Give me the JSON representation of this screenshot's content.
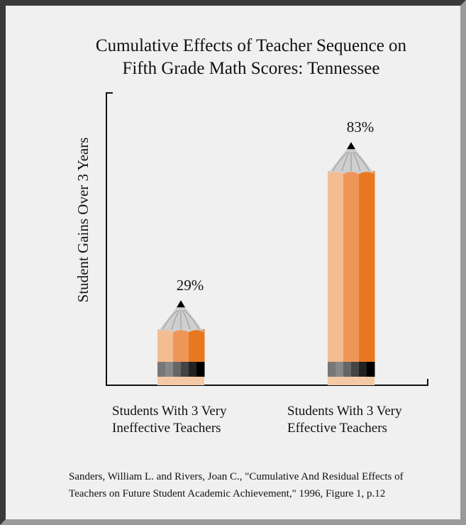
{
  "chart_data": {
    "type": "pencil",
    "title": [
      "Cumulative Effects of Teacher Sequence on",
      "Fifth Grade Math Scores: Tennessee"
    ],
    "y_label": "Student Gains Over 3 Years",
    "categories": [
      "Students With 3 Very Ineffective Teachers",
      "Students With 3 Very Effective Teachers"
    ],
    "values": [
      29,
      83
    ],
    "value_labels": [
      "29%",
      "83%"
    ],
    "ylim": [
      0,
      100
    ]
  },
  "source": [
    "Sanders, William L. and Rivers, Joan C., \"Cumulative And Residual Effects of",
    "Teachers on Future Student Academic Achievement,\" 1996, Figure 1,  p.12"
  ]
}
